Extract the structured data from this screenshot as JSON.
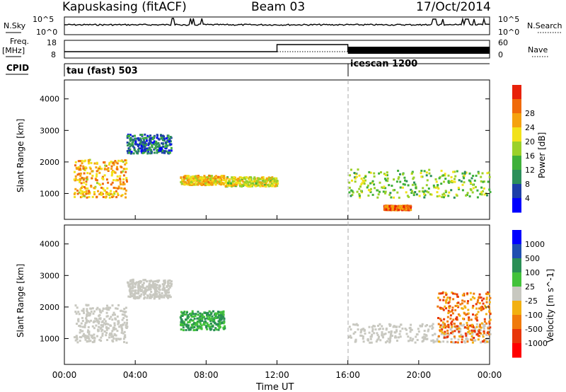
{
  "header": {
    "station": "Kapuskasing (fitACF)",
    "beam": "Beam 03",
    "date": "17/Oct/2014"
  },
  "noise_panel": {
    "left_label": "N.Sky",
    "right_label": "N.Search",
    "left_ticks": [
      "10^5",
      "10^0"
    ],
    "right_ticks": [
      "10^5",
      "10^0"
    ]
  },
  "freq_panel": {
    "left_label_1": "Freq.",
    "left_label_2": "[MHz]",
    "right_label": "Nave",
    "left_ticks": [
      "18",
      "8"
    ],
    "right_ticks": [
      "60",
      "0"
    ]
  },
  "cpid": {
    "label": "CPID",
    "segments": [
      {
        "name": "tau (fast) 503",
        "start_hour": 0,
        "end_hour": 16
      },
      {
        "name": "icescan 1200",
        "start_hour": 16,
        "end_hour": 24
      }
    ]
  },
  "time_axis": {
    "title": "Time UT",
    "ticks": [
      "00:00",
      "04:00",
      "08:00",
      "12:00",
      "16:00",
      "20:00",
      "00:00"
    ],
    "range_hours": [
      0,
      24
    ]
  },
  "colors": {
    "power": [
      "#0000ff",
      "#1d3fa8",
      "#2c8f5a",
      "#3fb03a",
      "#9bd12a",
      "#f2e21a",
      "#f5a20f",
      "#f06a0a",
      "#e8210a"
    ],
    "velocity": [
      "#0000ff",
      "#1f4fb0",
      "#2a8f55",
      "#43c23a",
      "#c8c8c0",
      "#f2b011",
      "#f07a0c",
      "#e8360a",
      "#ff0000"
    ],
    "groundscatter": "#c8c8c0"
  },
  "chart_data": [
    {
      "type": "heatmap",
      "title": "Power",
      "ylabel": "Slant Range [km]",
      "xlabel": "Time UT",
      "xlim_hours": [
        0,
        24
      ],
      "ylim": [
        180,
        4600
      ],
      "y_ticks": [
        1000,
        2000,
        3000,
        4000
      ],
      "colorbar": {
        "label": "Power [dB]",
        "ticks": [
          4,
          8,
          12,
          16,
          20,
          24,
          28
        ],
        "range": [
          0,
          30
        ]
      },
      "regions": [
        {
          "t0": 0.5,
          "t1": 3.5,
          "r0": 900,
          "r1": 2100,
          "level": 22
        },
        {
          "t0": 3.5,
          "t1": 6.0,
          "r0": 2300,
          "r1": 2900,
          "level": 6
        },
        {
          "t0": 6.5,
          "t1": 9.0,
          "r0": 1300,
          "r1": 1600,
          "level": 20
        },
        {
          "t0": 9.0,
          "t1": 12.0,
          "r0": 1250,
          "r1": 1550,
          "level": 18
        },
        {
          "t0": 16.0,
          "t1": 24.0,
          "r0": 900,
          "r1": 1800,
          "level": 14
        },
        {
          "t0": 18.0,
          "t1": 19.5,
          "r0": 500,
          "r1": 650,
          "level": 26
        }
      ]
    },
    {
      "type": "heatmap",
      "title": "Velocity",
      "ylabel": "Slant Range [km]",
      "xlabel": "Time UT",
      "xlim_hours": [
        0,
        24
      ],
      "ylim": [
        180,
        4600
      ],
      "y_ticks": [
        1000,
        2000,
        3000,
        4000
      ],
      "colorbar": {
        "label": "Velocity [m s^-1]",
        "ticks": [
          1000,
          500,
          100,
          25,
          -25,
          -100,
          -500,
          -1000
        ]
      },
      "regions": [
        {
          "t0": 0.5,
          "t1": 3.5,
          "r0": 900,
          "r1": 2100,
          "level": 0
        },
        {
          "t0": 3.5,
          "t1": 6.0,
          "r0": 2300,
          "r1": 2900,
          "level": 0
        },
        {
          "t0": 6.5,
          "t1": 9.0,
          "r0": 1300,
          "r1": 1900,
          "level": 150
        },
        {
          "t0": 16.0,
          "t1": 24.0,
          "r0": 900,
          "r1": 1500,
          "level": 0
        },
        {
          "t0": 21.0,
          "t1": 24.0,
          "r0": 900,
          "r1": 2500,
          "level": -300
        }
      ]
    }
  ]
}
